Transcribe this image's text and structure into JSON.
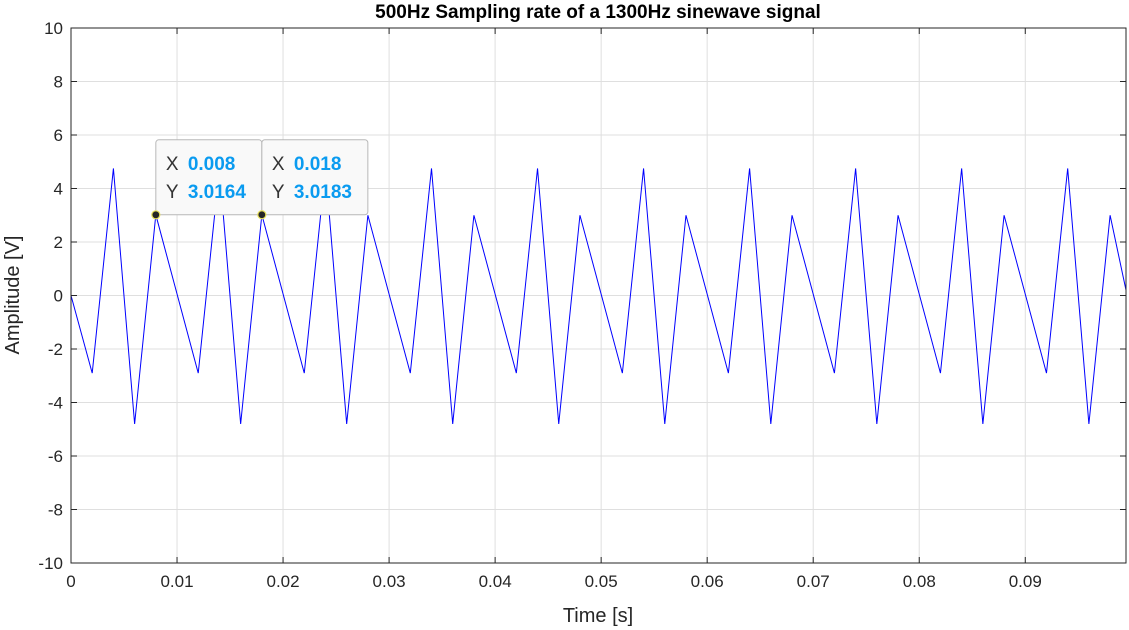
{
  "chart_data": {
    "type": "line",
    "title": "500Hz Sampling rate of a 1300Hz sinewave signal",
    "xlabel": "Time [s]",
    "ylabel": "Amplitude [V]",
    "xlim": [
      0,
      0.0995
    ],
    "ylim": [
      -10,
      10
    ],
    "grid": true,
    "x_ticks": [
      0,
      0.01,
      0.02,
      0.03,
      0.04,
      0.05,
      0.06,
      0.07,
      0.08,
      0.09
    ],
    "x_tick_labels": [
      "0",
      "0.01",
      "0.02",
      "0.03",
      "0.04",
      "0.05",
      "0.06",
      "0.07",
      "0.08",
      "0.09"
    ],
    "y_ticks": [
      -10,
      -8,
      -6,
      -4,
      -2,
      0,
      2,
      4,
      6,
      8,
      10
    ],
    "y_tick_labels": [
      "-10",
      "-8",
      "-6",
      "-4",
      "-2",
      "0",
      "2",
      "4",
      "6",
      "8",
      "10"
    ],
    "series": [
      {
        "color": "#0000ff",
        "x": [
          0,
          0.002,
          0.004,
          0.006,
          0.008,
          0.012,
          0.014,
          0.016,
          0.018,
          0.022,
          0.024,
          0.026,
          0.028,
          0.032,
          0.034,
          0.036,
          0.038,
          0.042,
          0.044,
          0.046,
          0.048,
          0.052,
          0.054,
          0.056,
          0.058,
          0.062,
          0.064,
          0.066,
          0.068,
          0.072,
          0.074,
          0.076,
          0.078,
          0.082,
          0.084,
          0.086,
          0.088,
          0.092,
          0.094,
          0.096,
          0.098,
          0.0995
        ],
        "y": [
          0,
          -2.9,
          4.75,
          -4.8,
          3.0164,
          -2.9,
          4.75,
          -4.8,
          3.0183,
          -2.9,
          4.75,
          -4.8,
          3.0,
          -2.9,
          4.75,
          -4.8,
          3.0,
          -2.9,
          4.75,
          -4.8,
          3.0,
          -2.9,
          4.75,
          -4.8,
          3.0,
          -2.9,
          4.75,
          -4.8,
          3.0,
          -2.9,
          4.75,
          -4.8,
          3.0,
          -2.9,
          4.75,
          -4.8,
          3.0,
          -2.9,
          4.75,
          -4.8,
          3.0,
          0.2
        ]
      }
    ],
    "datatips": [
      {
        "x": 0.008,
        "y": 3.0164,
        "x_text": "0.008",
        "y_text": "3.0164"
      },
      {
        "x": 0.018,
        "y": 3.0183,
        "x_text": "0.018",
        "y_text": "3.0183"
      }
    ]
  },
  "datatip_labels": {
    "x": "X",
    "y": "Y"
  }
}
